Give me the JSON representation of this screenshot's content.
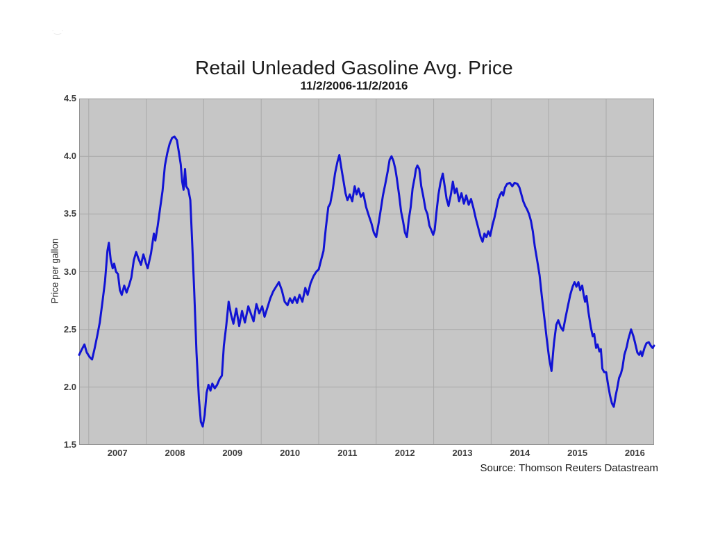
{
  "header": {
    "title": "Retail Unleaded Gasoline Avg. Price",
    "subtitle": "11/2/2006-11/2/2016"
  },
  "footer": {
    "source": "Source: Thomson Reuters Datastream"
  },
  "watermark_glyph": "·‿·",
  "chart_data": {
    "type": "line",
    "title": "Retail Unleaded Gasoline Avg. Price",
    "subtitle": "11/2/2006-11/2/2016",
    "xlabel": "",
    "ylabel": "Price per gallon",
    "ylim": [
      1.5,
      4.5
    ],
    "x_range": [
      0,
      120
    ],
    "x_unit": "months since Nov 2006 (axis spans 11/2/2006 - 11/2/2016)",
    "grid": true,
    "legend_position": "none",
    "y_ticks": [
      {
        "v": 1.5,
        "label": "1.5"
      },
      {
        "v": 2.0,
        "label": "2.0"
      },
      {
        "v": 2.5,
        "label": "2.5"
      },
      {
        "v": 3.0,
        "label": "3.0"
      },
      {
        "v": 3.5,
        "label": "3.5"
      },
      {
        "v": 4.0,
        "label": "4.0"
      },
      {
        "v": 4.5,
        "label": "4.5"
      }
    ],
    "y_gridlines": [
      2.0,
      2.5,
      3.0,
      3.5,
      4.0
    ],
    "x_gridlines_t": [
      2,
      14,
      26,
      38,
      50,
      62,
      74,
      86,
      98,
      110
    ],
    "x_ticks": [
      {
        "t": 8,
        "label": "2007"
      },
      {
        "t": 20,
        "label": "2008"
      },
      {
        "t": 32,
        "label": "2009"
      },
      {
        "t": 44,
        "label": "2010"
      },
      {
        "t": 56,
        "label": "2011"
      },
      {
        "t": 68,
        "label": "2012"
      },
      {
        "t": 80,
        "label": "2013"
      },
      {
        "t": 92,
        "label": "2014"
      },
      {
        "t": 104,
        "label": "2015"
      },
      {
        "t": 116,
        "label": "2016"
      }
    ],
    "colors": {
      "line": "#1113d4",
      "plot_bg": "#c6c6c6",
      "grid": "#a9a9a9",
      "border": "#949494",
      "page_bg": "#ffffff",
      "text": "#1a1a1a"
    },
    "series": [
      {
        "name": "Retail unleaded gasoline average price ($ per gallon)",
        "color": "#1113d4",
        "points": [
          [
            0,
            2.28
          ],
          [
            0.6,
            2.33
          ],
          [
            1.1,
            2.37
          ],
          [
            1.6,
            2.3
          ],
          [
            2.2,
            2.26
          ],
          [
            2.7,
            2.24
          ],
          [
            3.2,
            2.33
          ],
          [
            3.8,
            2.45
          ],
          [
            4.3,
            2.56
          ],
          [
            4.9,
            2.75
          ],
          [
            5.4,
            2.92
          ],
          [
            5.9,
            3.18
          ],
          [
            6.2,
            3.25
          ],
          [
            6.6,
            3.1
          ],
          [
            7,
            3.03
          ],
          [
            7.3,
            3.07
          ],
          [
            7.7,
            3.0
          ],
          [
            8.1,
            2.98
          ],
          [
            8.5,
            2.84
          ],
          [
            8.9,
            2.8
          ],
          [
            9.4,
            2.88
          ],
          [
            9.9,
            2.82
          ],
          [
            10.4,
            2.88
          ],
          [
            10.9,
            2.95
          ],
          [
            11.4,
            3.1
          ],
          [
            11.9,
            3.17
          ],
          [
            12.4,
            3.11
          ],
          [
            12.9,
            3.06
          ],
          [
            13.4,
            3.15
          ],
          [
            13.9,
            3.08
          ],
          [
            14.3,
            3.03
          ],
          [
            15,
            3.16
          ],
          [
            15.6,
            3.33
          ],
          [
            15.9,
            3.27
          ],
          [
            16.4,
            3.4
          ],
          [
            16.9,
            3.55
          ],
          [
            17.4,
            3.7
          ],
          [
            17.9,
            3.92
          ],
          [
            18.4,
            4.03
          ],
          [
            18.9,
            4.11
          ],
          [
            19.4,
            4.16
          ],
          [
            19.9,
            4.17
          ],
          [
            20.4,
            4.14
          ],
          [
            20.8,
            4.04
          ],
          [
            21.2,
            3.93
          ],
          [
            21.5,
            3.78
          ],
          [
            21.8,
            3.71
          ],
          [
            22.1,
            3.89
          ],
          [
            22.35,
            3.74
          ],
          [
            22.8,
            3.71
          ],
          [
            23.2,
            3.62
          ],
          [
            23.6,
            3.25
          ],
          [
            24,
            2.85
          ],
          [
            24.5,
            2.3
          ],
          [
            25,
            1.9
          ],
          [
            25.4,
            1.7
          ],
          [
            25.8,
            1.66
          ],
          [
            26.2,
            1.76
          ],
          [
            26.6,
            1.95
          ],
          [
            27,
            2.02
          ],
          [
            27.4,
            1.97
          ],
          [
            27.8,
            2.03
          ],
          [
            28.3,
            1.99
          ],
          [
            28.8,
            2.02
          ],
          [
            29.3,
            2.07
          ],
          [
            29.8,
            2.1
          ],
          [
            30.2,
            2.36
          ],
          [
            30.7,
            2.53
          ],
          [
            31.2,
            2.74
          ],
          [
            31.7,
            2.63
          ],
          [
            32.2,
            2.55
          ],
          [
            32.8,
            2.68
          ],
          [
            33.4,
            2.53
          ],
          [
            34,
            2.66
          ],
          [
            34.6,
            2.56
          ],
          [
            35.3,
            2.7
          ],
          [
            35.9,
            2.63
          ],
          [
            36.4,
            2.57
          ],
          [
            37,
            2.72
          ],
          [
            37.6,
            2.64
          ],
          [
            38.2,
            2.7
          ],
          [
            38.7,
            2.61
          ],
          [
            39.3,
            2.69
          ],
          [
            39.9,
            2.77
          ],
          [
            40.5,
            2.83
          ],
          [
            41.1,
            2.87
          ],
          [
            41.7,
            2.91
          ],
          [
            42.3,
            2.84
          ],
          [
            42.9,
            2.74
          ],
          [
            43.5,
            2.71
          ],
          [
            44,
            2.77
          ],
          [
            44.5,
            2.73
          ],
          [
            45,
            2.78
          ],
          [
            45.5,
            2.73
          ],
          [
            46,
            2.8
          ],
          [
            46.6,
            2.74
          ],
          [
            47.2,
            2.86
          ],
          [
            47.7,
            2.8
          ],
          [
            48.3,
            2.9
          ],
          [
            48.9,
            2.96
          ],
          [
            49.5,
            3.0
          ],
          [
            50,
            3.02
          ],
          [
            50.5,
            3.1
          ],
          [
            51,
            3.18
          ],
          [
            51.5,
            3.38
          ],
          [
            52,
            3.56
          ],
          [
            52.4,
            3.59
          ],
          [
            52.9,
            3.7
          ],
          [
            53.4,
            3.85
          ],
          [
            53.9,
            3.95
          ],
          [
            54.3,
            4.01
          ],
          [
            54.8,
            3.88
          ],
          [
            55.2,
            3.78
          ],
          [
            55.6,
            3.68
          ],
          [
            56,
            3.62
          ],
          [
            56.5,
            3.67
          ],
          [
            57,
            3.61
          ],
          [
            57.5,
            3.74
          ],
          [
            57.9,
            3.67
          ],
          [
            58.3,
            3.72
          ],
          [
            58.8,
            3.65
          ],
          [
            59.3,
            3.68
          ],
          [
            59.9,
            3.56
          ],
          [
            60.5,
            3.48
          ],
          [
            61,
            3.42
          ],
          [
            61.5,
            3.34
          ],
          [
            62,
            3.3
          ],
          [
            62.5,
            3.42
          ],
          [
            63,
            3.55
          ],
          [
            63.4,
            3.66
          ],
          [
            63.9,
            3.76
          ],
          [
            64.4,
            3.87
          ],
          [
            64.8,
            3.97
          ],
          [
            65.2,
            4.0
          ],
          [
            65.6,
            3.96
          ],
          [
            66,
            3.89
          ],
          [
            66.3,
            3.81
          ],
          [
            66.8,
            3.66
          ],
          [
            67.2,
            3.52
          ],
          [
            67.6,
            3.44
          ],
          [
            68,
            3.34
          ],
          [
            68.4,
            3.3
          ],
          [
            68.8,
            3.45
          ],
          [
            69.2,
            3.56
          ],
          [
            69.6,
            3.72
          ],
          [
            70,
            3.81
          ],
          [
            70.3,
            3.89
          ],
          [
            70.6,
            3.92
          ],
          [
            71,
            3.89
          ],
          [
            71.4,
            3.74
          ],
          [
            71.8,
            3.66
          ],
          [
            72.3,
            3.54
          ],
          [
            72.7,
            3.5
          ],
          [
            73.1,
            3.4
          ],
          [
            73.5,
            3.36
          ],
          [
            73.9,
            3.32
          ],
          [
            74.2,
            3.36
          ],
          [
            74.6,
            3.52
          ],
          [
            75,
            3.67
          ],
          [
            75.4,
            3.77
          ],
          [
            75.9,
            3.85
          ],
          [
            76.3,
            3.74
          ],
          [
            76.7,
            3.63
          ],
          [
            77.1,
            3.57
          ],
          [
            77.6,
            3.67
          ],
          [
            78,
            3.78
          ],
          [
            78.4,
            3.68
          ],
          [
            78.8,
            3.72
          ],
          [
            79.3,
            3.61
          ],
          [
            79.8,
            3.68
          ],
          [
            80.3,
            3.59
          ],
          [
            80.8,
            3.66
          ],
          [
            81.3,
            3.58
          ],
          [
            81.8,
            3.63
          ],
          [
            82.3,
            3.55
          ],
          [
            82.8,
            3.46
          ],
          [
            83.3,
            3.38
          ],
          [
            83.8,
            3.3
          ],
          [
            84.2,
            3.26
          ],
          [
            84.6,
            3.33
          ],
          [
            85,
            3.3
          ],
          [
            85.4,
            3.35
          ],
          [
            85.8,
            3.31
          ],
          [
            86.3,
            3.41
          ],
          [
            86.7,
            3.47
          ],
          [
            87.1,
            3.55
          ],
          [
            87.5,
            3.63
          ],
          [
            87.9,
            3.67
          ],
          [
            88.2,
            3.69
          ],
          [
            88.5,
            3.66
          ],
          [
            88.9,
            3.73
          ],
          [
            89.3,
            3.76
          ],
          [
            89.9,
            3.77
          ],
          [
            90.4,
            3.74
          ],
          [
            90.9,
            3.77
          ],
          [
            91.5,
            3.76
          ],
          [
            91.9,
            3.73
          ],
          [
            92.3,
            3.67
          ],
          [
            92.7,
            3.61
          ],
          [
            93.1,
            3.57
          ],
          [
            93.5,
            3.54
          ],
          [
            93.9,
            3.5
          ],
          [
            94.3,
            3.44
          ],
          [
            94.7,
            3.35
          ],
          [
            95.1,
            3.22
          ],
          [
            95.6,
            3.1
          ],
          [
            96.1,
            2.97
          ],
          [
            96.6,
            2.78
          ],
          [
            97.1,
            2.6
          ],
          [
            97.6,
            2.42
          ],
          [
            98.1,
            2.25
          ],
          [
            98.6,
            2.14
          ],
          [
            99.1,
            2.38
          ],
          [
            99.6,
            2.54
          ],
          [
            100,
            2.58
          ],
          [
            100.5,
            2.52
          ],
          [
            101,
            2.49
          ],
          [
            101.5,
            2.6
          ],
          [
            102,
            2.7
          ],
          [
            102.5,
            2.8
          ],
          [
            103,
            2.87
          ],
          [
            103.4,
            2.91
          ],
          [
            103.8,
            2.87
          ],
          [
            104.2,
            2.91
          ],
          [
            104.6,
            2.84
          ],
          [
            105,
            2.88
          ],
          [
            105.3,
            2.8
          ],
          [
            105.6,
            2.74
          ],
          [
            105.9,
            2.79
          ],
          [
            106.3,
            2.65
          ],
          [
            106.8,
            2.52
          ],
          [
            107.2,
            2.44
          ],
          [
            107.5,
            2.46
          ],
          [
            107.9,
            2.34
          ],
          [
            108.2,
            2.37
          ],
          [
            108.6,
            2.31
          ],
          [
            108.9,
            2.33
          ],
          [
            109.2,
            2.16
          ],
          [
            109.6,
            2.13
          ],
          [
            110,
            2.13
          ],
          [
            110.4,
            2.02
          ],
          [
            110.8,
            1.93
          ],
          [
            111.2,
            1.86
          ],
          [
            111.6,
            1.83
          ],
          [
            112,
            1.93
          ],
          [
            112.3,
            1.99
          ],
          [
            112.7,
            2.08
          ],
          [
            113.1,
            2.12
          ],
          [
            113.4,
            2.17
          ],
          [
            113.8,
            2.28
          ],
          [
            114.3,
            2.35
          ],
          [
            114.6,
            2.41
          ],
          [
            115.2,
            2.5
          ],
          [
            115.7,
            2.44
          ],
          [
            116,
            2.39
          ],
          [
            116.5,
            2.3
          ],
          [
            116.9,
            2.28
          ],
          [
            117.2,
            2.31
          ],
          [
            117.5,
            2.27
          ],
          [
            118,
            2.34
          ],
          [
            118.4,
            2.38
          ],
          [
            118.9,
            2.39
          ],
          [
            119.3,
            2.36
          ],
          [
            119.7,
            2.34
          ],
          [
            120,
            2.36
          ]
        ]
      }
    ]
  }
}
